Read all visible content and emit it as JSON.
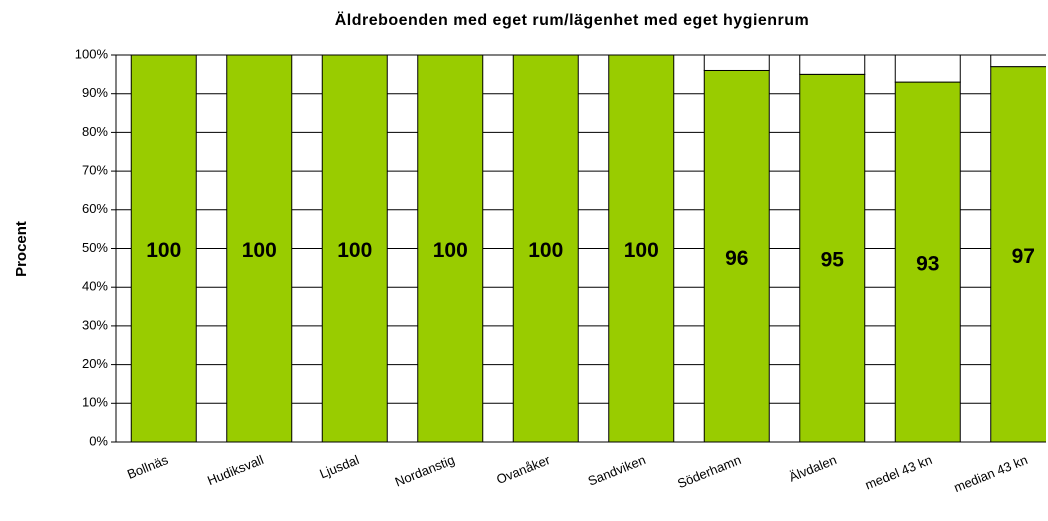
{
  "chart_data": {
    "type": "stacked_bar",
    "title": "Äldreboenden med eget rum/lägenhet med eget hygienrum",
    "y_label": "Procent",
    "categories": [
      "Bollnäs",
      "Hudiksvall",
      "Ljusdal",
      "Nordanstig",
      "Ovanåker",
      "Sandviken",
      "Söderhamn",
      "Älvdalen",
      "medel 43 kn",
      "median 43 kn"
    ],
    "series": [
      {
        "color": "#99cc00",
        "values": [
          100,
          100,
          100,
          100,
          100,
          100,
          96,
          95,
          93,
          97
        ]
      },
      {
        "color": "#ffffff",
        "values": [
          0,
          0,
          0,
          0,
          0,
          0,
          4,
          5,
          7,
          3
        ]
      }
    ],
    "ylim": [
      0,
      100
    ],
    "yticks": [
      {
        "value": 0,
        "label": "0%"
      },
      {
        "value": 10,
        "label": "10%"
      },
      {
        "value": 20,
        "label": "20%"
      },
      {
        "value": 30,
        "label": "30%"
      },
      {
        "value": 40,
        "label": "40%"
      },
      {
        "value": 50,
        "label": "50%"
      },
      {
        "value": 60,
        "label": "60%"
      },
      {
        "value": 70,
        "label": "70%"
      },
      {
        "value": 80,
        "label": "80%"
      },
      {
        "value": 90,
        "label": "90%"
      },
      {
        "value": 100,
        "label": "100%"
      }
    ],
    "grid": true
  }
}
